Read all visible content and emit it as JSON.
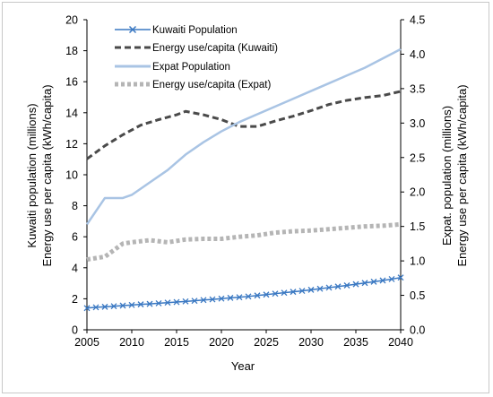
{
  "chart_data": {
    "type": "line",
    "xlabel": "Year",
    "ylabel_left": [
      "Kuwaiti population (millions)",
      "Energy use per capita (kWh/capita)"
    ],
    "ylabel_right": [
      "Expat. population (millions)",
      "Energy use per capita (kWh/capita)"
    ],
    "xlim": [
      2005,
      2040
    ],
    "ylim_left": [
      0,
      20
    ],
    "ylim_right": [
      0,
      4.5
    ],
    "x_ticks": [
      2005,
      2010,
      2015,
      2020,
      2025,
      2030,
      2035,
      2040
    ],
    "y_ticks_left": [
      "0",
      "2",
      "4",
      "6",
      "8",
      "10",
      "12",
      "14",
      "16",
      "18",
      "20"
    ],
    "y_ticks_right": [
      "0.0",
      "0.5",
      "1.0",
      "1.5",
      "2.0",
      "2.5",
      "3.0",
      "3.5",
      "4.0",
      "4.5"
    ],
    "grid": false,
    "legend_position": "top-left",
    "series": [
      {
        "name": "Kuwaiti Population",
        "axis": "left",
        "style": "solid-x-markers",
        "color": "#3a78c2",
        "x": [
          2005,
          2006,
          2007,
          2008,
          2009,
          2010,
          2011,
          2012,
          2013,
          2014,
          2015,
          2016,
          2017,
          2018,
          2019,
          2020,
          2021,
          2022,
          2023,
          2024,
          2025,
          2026,
          2027,
          2028,
          2029,
          2030,
          2031,
          2032,
          2033,
          2034,
          2035,
          2036,
          2037,
          2038,
          2039,
          2040
        ],
        "values": [
          1.4,
          1.45,
          1.48,
          1.52,
          1.56,
          1.6,
          1.64,
          1.67,
          1.71,
          1.75,
          1.79,
          1.83,
          1.87,
          1.92,
          1.96,
          2.01,
          2.06,
          2.1,
          2.15,
          2.21,
          2.27,
          2.33,
          2.39,
          2.45,
          2.51,
          2.58,
          2.65,
          2.72,
          2.79,
          2.86,
          2.94,
          3.02,
          3.1,
          3.18,
          3.27,
          3.37
        ]
      },
      {
        "name": "Energy use/capita (Kuwaiti)",
        "axis": "right",
        "style": "dashed",
        "color": "#4a4a4a",
        "x": [
          2005,
          2007,
          2009,
          2011,
          2013,
          2015,
          2016,
          2018,
          2020,
          2022,
          2024,
          2026,
          2028,
          2030,
          2032,
          2034,
          2036,
          2038,
          2040
        ],
        "values": [
          2.48,
          2.67,
          2.83,
          2.97,
          3.05,
          3.12,
          3.17,
          3.12,
          3.05,
          2.95,
          2.95,
          3.03,
          3.1,
          3.18,
          3.27,
          3.33,
          3.37,
          3.4,
          3.46
        ]
      },
      {
        "name": "Expat Population",
        "axis": "left",
        "style": "solid",
        "color": "#a9c4e4",
        "x": [
          2005,
          2007,
          2009,
          2010,
          2012,
          2014,
          2016,
          2018,
          2020,
          2022,
          2024,
          2026,
          2028,
          2030,
          2032,
          2034,
          2036,
          2038,
          2040
        ],
        "values": [
          6.8,
          8.5,
          8.5,
          8.7,
          9.5,
          10.3,
          11.3,
          12.1,
          12.8,
          13.4,
          13.9,
          14.4,
          14.9,
          15.4,
          15.9,
          16.4,
          16.9,
          17.5,
          18.1
        ]
      },
      {
        "name": "Energy use/capita (Expat)",
        "axis": "right",
        "style": "dotted",
        "color": "#b5b5b5",
        "x": [
          2005,
          2007,
          2009,
          2010,
          2012,
          2014,
          2016,
          2018,
          2020,
          2022,
          2024,
          2026,
          2028,
          2030,
          2032,
          2034,
          2036,
          2038,
          2040
        ],
        "values": [
          1.02,
          1.06,
          1.25,
          1.27,
          1.3,
          1.27,
          1.31,
          1.32,
          1.32,
          1.35,
          1.37,
          1.41,
          1.43,
          1.44,
          1.46,
          1.48,
          1.5,
          1.51,
          1.53
        ]
      }
    ]
  }
}
